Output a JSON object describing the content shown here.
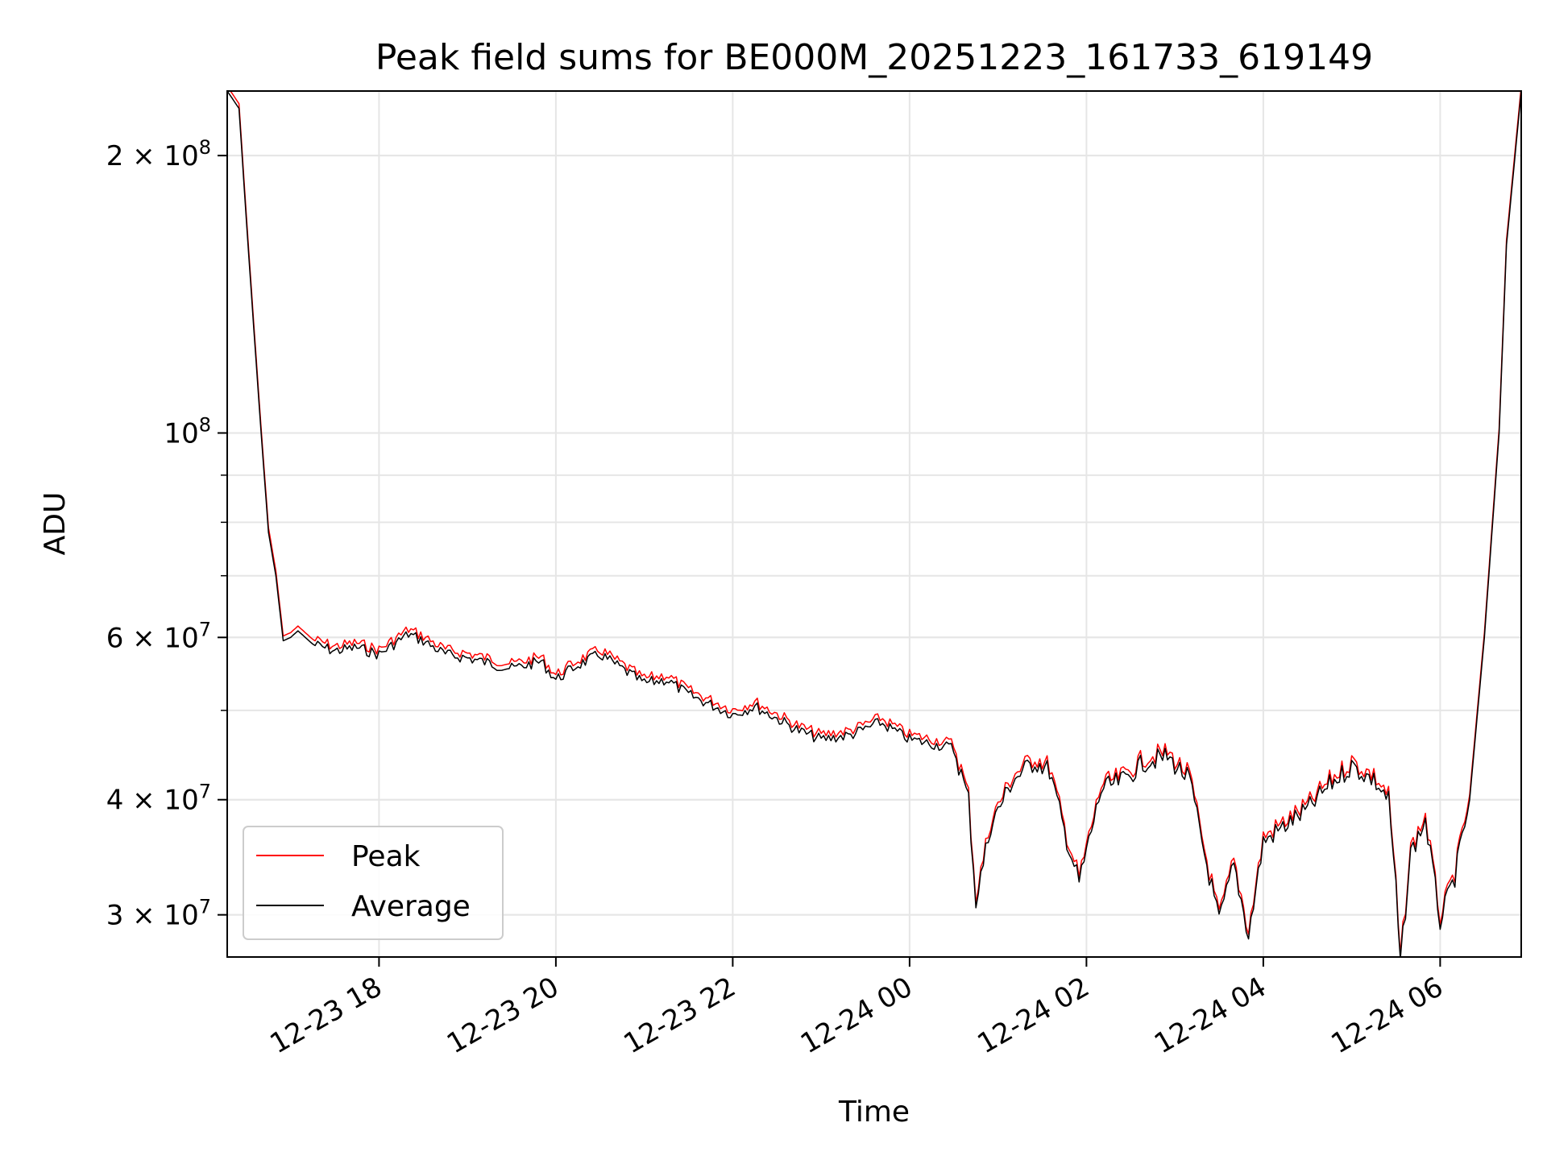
{
  "chart_data": {
    "type": "line",
    "title": "Peak field sums for BE000M_20251223_161733_619149",
    "xlabel": "Time",
    "ylabel": "ADU",
    "yscale": "log",
    "ylim": [
      27000000,
      235000000
    ],
    "xlim": [
      "2025-12-23 16:17",
      "2025-12-24 06:55"
    ],
    "grid": true,
    "legend_placement": "lower-left",
    "x_ticks": [
      {
        "value": "2025-12-23 18:00",
        "label": "12-23 18"
      },
      {
        "value": "2025-12-23 20:00",
        "label": "12-23 20"
      },
      {
        "value": "2025-12-23 22:00",
        "label": "12-23 22"
      },
      {
        "value": "2025-12-24 00:00",
        "label": "12-24 00"
      },
      {
        "value": "2025-12-24 02:00",
        "label": "12-24 02"
      },
      {
        "value": "2025-12-24 04:00",
        "label": "12-24 04"
      },
      {
        "value": "2025-12-24 06:00",
        "label": "12-24 06"
      }
    ],
    "y_ticks": [
      {
        "value": 200000000,
        "base": "2 × 10",
        "exp": "8"
      },
      {
        "value": 100000000,
        "base": "10",
        "exp": "8"
      },
      {
        "value": 60000000,
        "base": "6 × 10",
        "exp": "7"
      },
      {
        "value": 40000000,
        "base": "4 × 10",
        "exp": "7"
      },
      {
        "value": 30000000,
        "base": "3 × 10",
        "exp": "7"
      }
    ],
    "y_minor_ticks": [
      30000000,
      40000000,
      50000000,
      60000000,
      70000000,
      80000000,
      90000000,
      200000000
    ],
    "series": [
      {
        "name": "Peak",
        "color": "#ff0000",
        "offset_pct": 1.2
      },
      {
        "name": "Average",
        "color": "#000000",
        "x": [
          "2025-12-23 16:17",
          "2025-12-23 16:25",
          "2025-12-23 16:30",
          "2025-12-23 16:35",
          "2025-12-23 16:40",
          "2025-12-23 16:45",
          "2025-12-23 16:50",
          "2025-12-23 16:55",
          "2025-12-23 17:00",
          "2025-12-23 17:05",
          "2025-12-23 17:10",
          "2025-12-23 17:15",
          "2025-12-23 17:30",
          "2025-12-23 17:45",
          "2025-12-23 18:00",
          "2025-12-23 18:20",
          "2025-12-23 18:30",
          "2025-12-23 18:45",
          "2025-12-23 19:00",
          "2025-12-23 19:30",
          "2025-12-23 19:50",
          "2025-12-23 20:00",
          "2025-12-23 20:15",
          "2025-12-23 20:30",
          "2025-12-23 21:00",
          "2025-12-23 21:15",
          "2025-12-23 21:30",
          "2025-12-23 22:00",
          "2025-12-23 22:15",
          "2025-12-23 22:30",
          "2025-12-23 22:45",
          "2025-12-23 23:00",
          "2025-12-23 23:20",
          "2025-12-23 23:40",
          "2025-12-24 00:00",
          "2025-12-24 00:30",
          "2025-12-24 00:40",
          "2025-12-24 00:45",
          "2025-12-24 00:55",
          "2025-12-24 01:10",
          "2025-12-24 01:25",
          "2025-12-24 01:35",
          "2025-12-24 01:45",
          "2025-12-24 01:55",
          "2025-12-24 02:10",
          "2025-12-24 02:25",
          "2025-12-24 02:40",
          "2025-12-24 02:55",
          "2025-12-24 03:10",
          "2025-12-24 03:20",
          "2025-12-24 03:30",
          "2025-12-24 03:40",
          "2025-12-24 03:50",
          "2025-12-24 04:00",
          "2025-12-24 04:15",
          "2025-12-24 04:30",
          "2025-12-24 04:45",
          "2025-12-24 05:00",
          "2025-12-24 05:15",
          "2025-12-24 05:25",
          "2025-12-24 05:30",
          "2025-12-24 05:33",
          "2025-12-24 05:40",
          "2025-12-24 05:50",
          "2025-12-24 06:00",
          "2025-12-24 06:10",
          "2025-12-24 06:20",
          "2025-12-24 06:30",
          "2025-12-24 06:40",
          "2025-12-24 06:45",
          "2025-12-24 06:55"
        ],
        "y": [
          235000000,
          225000000,
          170000000,
          130000000,
          100000000,
          78000000,
          70000000,
          59500000,
          60000000,
          61000000,
          60000000,
          59000000,
          58000000,
          58500000,
          57500000,
          60500000,
          59500000,
          57500000,
          57000000,
          55500000,
          56500000,
          54000000,
          56000000,
          57500000,
          53500000,
          54000000,
          52000000,
          49500000,
          50500000,
          49000000,
          47500000,
          46500000,
          47000000,
          48500000,
          46500000,
          45500000,
          40000000,
          31000000,
          37500000,
          42000000,
          44000000,
          43000000,
          37000000,
          32500000,
          41000000,
          42000000,
          44000000,
          44500000,
          42000000,
          35000000,
          29500000,
          34000000,
          28500000,
          36000000,
          37500000,
          39000000,
          41500000,
          43500000,
          42000000,
          40000000,
          32000000,
          26500000,
          35000000,
          38000000,
          29500000,
          33000000,
          40000000,
          60000000,
          100000000,
          160000000,
          235000000
        ]
      }
    ]
  }
}
